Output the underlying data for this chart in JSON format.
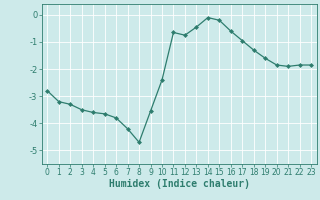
{
  "x": [
    0,
    1,
    2,
    3,
    4,
    5,
    6,
    7,
    8,
    9,
    10,
    11,
    12,
    13,
    14,
    15,
    16,
    17,
    18,
    19,
    20,
    21,
    22,
    23
  ],
  "y": [
    -2.8,
    -3.2,
    -3.3,
    -3.5,
    -3.6,
    -3.65,
    -3.8,
    -4.2,
    -4.7,
    -3.55,
    -2.4,
    -0.65,
    -0.75,
    -0.45,
    -0.1,
    -0.2,
    -0.6,
    -0.95,
    -1.3,
    -1.6,
    -1.85,
    -1.9,
    -1.85,
    -1.85
  ],
  "line_color": "#2e7d6e",
  "marker": "D",
  "markersize": 2.0,
  "linewidth": 0.9,
  "xlabel": "Humidex (Indice chaleur)",
  "xlabel_fontsize": 7,
  "xlim": [
    -0.5,
    23.5
  ],
  "ylim": [
    -5.5,
    0.4
  ],
  "yticks": [
    0,
    -1,
    -2,
    -3,
    -4,
    -5
  ],
  "xticks": [
    0,
    1,
    2,
    3,
    4,
    5,
    6,
    7,
    8,
    9,
    10,
    11,
    12,
    13,
    14,
    15,
    16,
    17,
    18,
    19,
    20,
    21,
    22,
    23
  ],
  "bg_color": "#cdeaea",
  "grid_color": "#ffffff",
  "ytick_fontsize": 6,
  "xtick_fontsize": 5.5
}
